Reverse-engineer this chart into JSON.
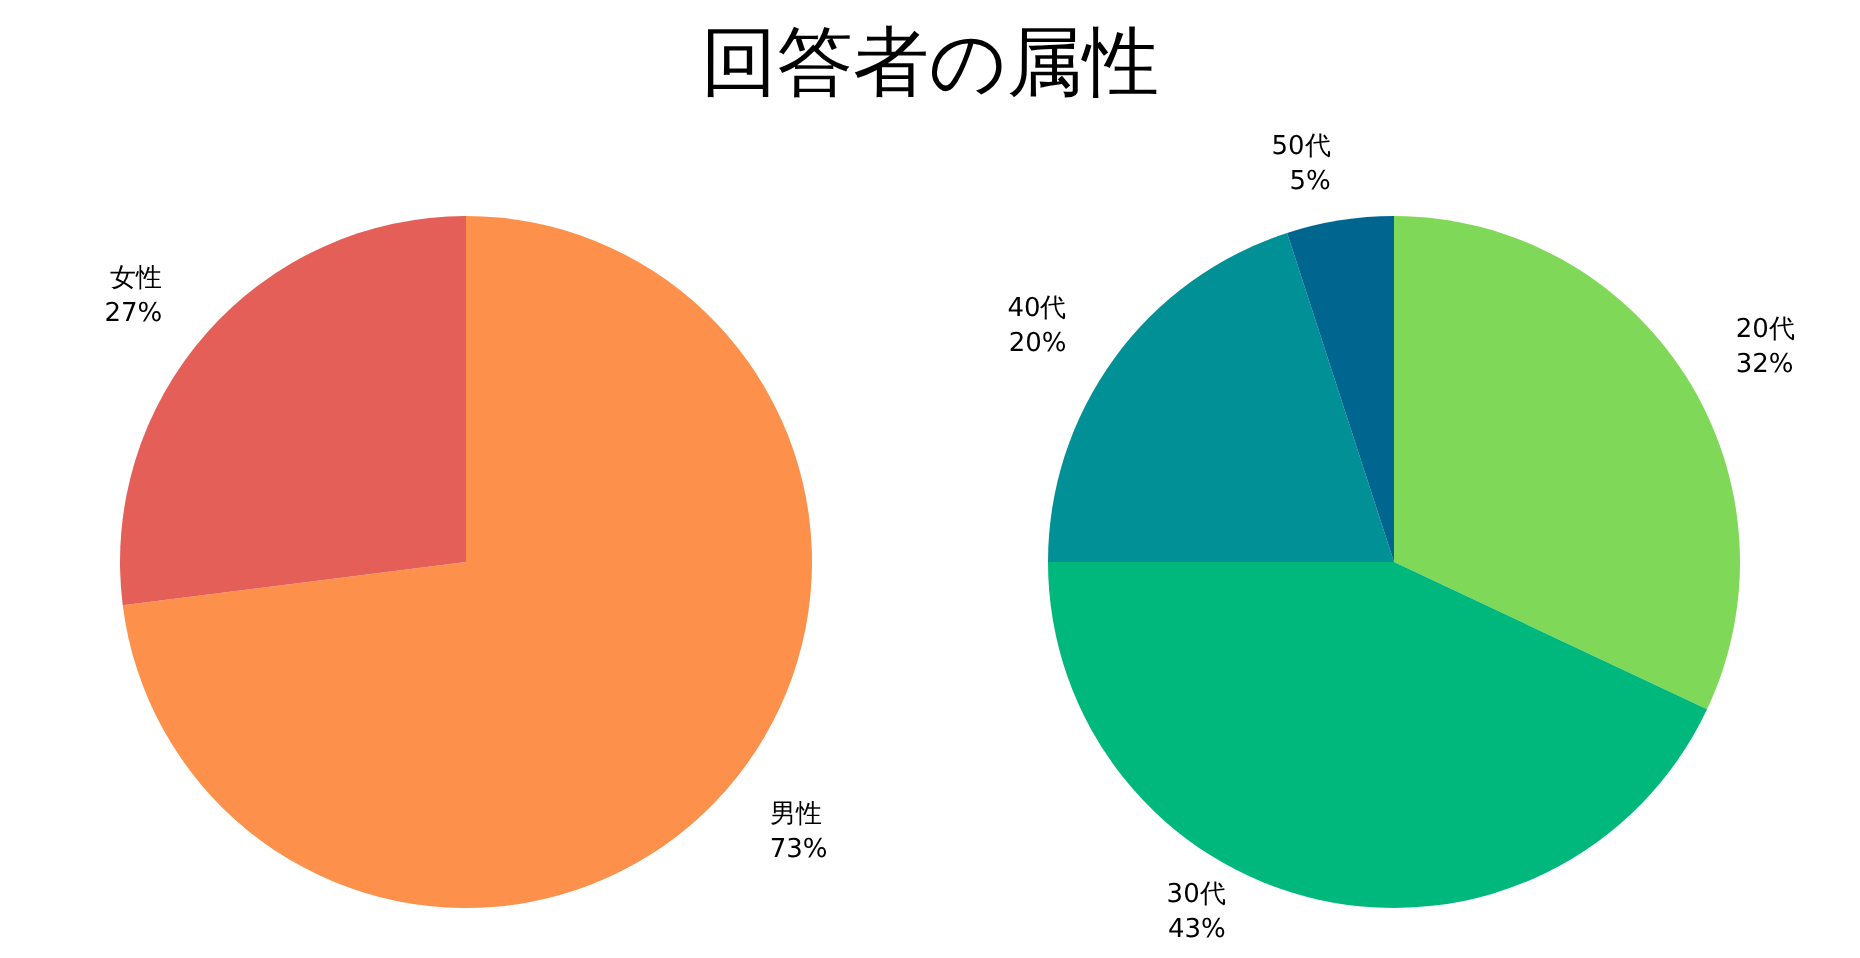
{
  "chart_data": [
    {
      "type": "pie",
      "title": "回答者の属性",
      "categories": [
        "男性",
        "女性"
      ],
      "values": [
        73,
        27
      ],
      "value_labels": [
        "73%",
        "27%"
      ],
      "colors": [
        "#fd914b",
        "#e35f57"
      ]
    },
    {
      "type": "pie",
      "categories": [
        "20代",
        "30代",
        "40代",
        "50代"
      ],
      "values": [
        32,
        43,
        20,
        5
      ],
      "value_labels": [
        "32%",
        "43%",
        "20%",
        "5%"
      ],
      "colors": [
        "#80d858",
        "#00b87b",
        "#009095",
        "#006690"
      ]
    }
  ]
}
